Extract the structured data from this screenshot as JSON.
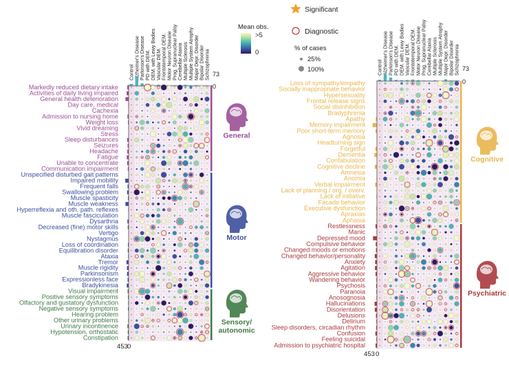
{
  "disease_columns": [
    "Control",
    "Alzheimer's Disease",
    "Parkinson's Disease",
    "PD with DEM.",
    "DEM. with Lewy Bodies",
    "Vascular DEM.",
    "Frontotemporal DEM.",
    "Motor Neuron Disease",
    "Prog. Supranuclear Palsy",
    "Cerebellar Ataxia",
    "Multiple Sclerosis",
    "Multiple System Atrophy",
    "Major Depr. Disorder",
    "Bipolar Disorder",
    "Schizophrenia"
  ],
  "colorbar": {
    "title": "Mean obs.",
    "max_label": ">5",
    "min_label": "0",
    "stops": [
      "#2d1a5e",
      "#3b4f9a",
      "#3a8fb0",
      "#5dc3a8",
      "#b5e3a0",
      "#f6f9c8"
    ]
  },
  "legend": {
    "significant": "Significant",
    "diagnostic": "Diagnostic",
    "size_title": "% of cases",
    "size_25": "25%",
    "size_100": "100%",
    "significant_color": "#f2a02a",
    "diagnostic_color": "#c0393b"
  },
  "left_axis": {
    "top_max": "73",
    "top_min": "0",
    "bar_max": "453",
    "bar_min": "0"
  },
  "right_axis": {
    "top_max": "73",
    "top_min": "0",
    "bar_max": "453",
    "bar_min": "0"
  },
  "chart_data": [
    {
      "type": "heatmap",
      "panel": "left",
      "column_totals": [
        12,
        55,
        15,
        8,
        6,
        7,
        5,
        4,
        3,
        2,
        6,
        3,
        4,
        2,
        2
      ],
      "categories": [
        {
          "name": "General",
          "color": "#9b4f96",
          "rows": [
            "Markedly reduced dietary intake",
            "Activities of daily living impaired",
            "General health deterioration",
            "Day care, medical",
            "Cachexia",
            "Admission to nursing home",
            "Weight loss",
            "Vivid dreaming",
            "Stress",
            "Sleep disturbances",
            "Seizures",
            "Headache",
            "Fatigue",
            "Unable to concentrate",
            "Communication impairment"
          ],
          "bars": [
            80,
            120,
            190,
            25,
            12,
            70,
            40,
            20,
            15,
            85,
            60,
            80,
            110,
            90,
            50
          ]
        },
        {
          "name": "Motor",
          "color": "#3c4f9c",
          "rows": [
            "Unspecified disturbed gait patterns",
            "Impaired mobility",
            "Frequent falls",
            "Swallowing problem",
            "Muscle spasticity",
            "Muscle weakness",
            "Hyperreflexia and oth. path. reflexes",
            "Muscle fasciculation",
            "Dysarthria",
            "Decreased (fine) motor skills",
            "Vertigo",
            "Nystagmus",
            "Loss of coordination",
            "Equilibration disorder",
            "Ataxia",
            "Tremor",
            "Muscle rigidity",
            "Parkinsonism",
            "Expressionless face",
            "Bradykinesia"
          ],
          "bars": [
            20,
            200,
            60,
            90,
            40,
            190,
            25,
            20,
            70,
            50,
            20,
            10,
            40,
            50,
            30,
            130,
            100,
            95,
            60,
            110
          ]
        },
        {
          "name": "Sensory/ autonomic",
          "color": "#3f7a45",
          "rows": [
            "Visual impairment",
            "Positive sensory symptoms",
            "Olfactory and gustatory dysfunction",
            "Negative sensory symptoms",
            "Hearing problem",
            "Other urinary problems",
            "Urinary incontinence",
            "Hypotension, orthostatic",
            "Constipation"
          ],
          "bars": [
            60,
            40,
            30,
            40,
            20,
            30,
            70,
            50,
            60
          ]
        }
      ]
    },
    {
      "type": "heatmap",
      "panel": "right",
      "column_totals": [
        8,
        40,
        20,
        7,
        5,
        6,
        9,
        5,
        3,
        2,
        4,
        3,
        10,
        3,
        3
      ],
      "categories": [
        {
          "name": "Cognitive",
          "color": "#e9b54c",
          "rows": [
            "Loss of sympathy/empathy",
            "Socially inappropriate behavior",
            "Hypersexuality",
            "Frontal release signs",
            "Social disinhibition",
            "Bradyphrenia",
            "Apathy",
            "Memory impairment",
            "Poor short-term memory",
            "Agnosia",
            "Headturning sign",
            "Forgetful",
            "Dementia",
            "Confabulation",
            "Cognitive decline",
            "Amnesia",
            "Anomia",
            "Verbal impairment",
            "Lack of planning / org. / overv.",
            "Lack of initiative",
            "Facade behavior",
            "Executive dysfunction",
            "Apraxias",
            "Aphasia"
          ],
          "bars": [
            15,
            20,
            10,
            10,
            15,
            10,
            60,
            220,
            70,
            20,
            8,
            80,
            130,
            15,
            110,
            20,
            25,
            90,
            20,
            30,
            15,
            40,
            25,
            30
          ]
        },
        {
          "name": "Psychiatric",
          "color": "#a83a3d",
          "rows": [
            "Restlessness",
            "Manic",
            "Depressed mood",
            "Compulsive behavior",
            "Changed moods or emotions",
            "Changed behavior/personality",
            "Anxiety",
            "Agitation",
            "Aggressive behavior",
            "Wandering behavior",
            "Psychosis",
            "Paranoia",
            "Anosognosia",
            "Hallucinations",
            "Disorientation",
            "Delusions",
            "Delirium",
            "Sleep disorders, circadian rhythm",
            "Confusion",
            "Feeling suicidal",
            "Admission to psychiatric hospital"
          ],
          "bars": [
            70,
            20,
            200,
            60,
            50,
            110,
            90,
            100,
            70,
            30,
            40,
            30,
            25,
            120,
            110,
            50,
            30,
            40,
            80,
            30,
            70
          ]
        }
      ]
    }
  ]
}
